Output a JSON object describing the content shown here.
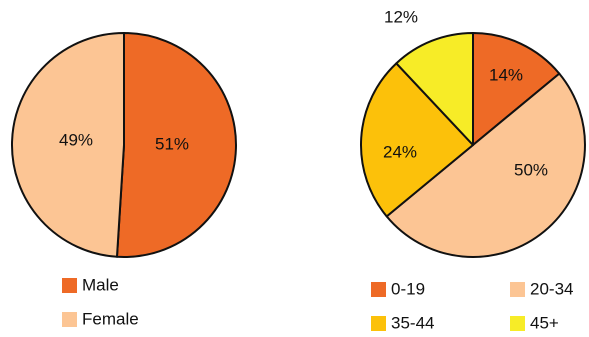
{
  "chart_data": [
    {
      "type": "pie",
      "title": "",
      "slices": [
        {
          "label": "Male",
          "value": 51,
          "display": "51%",
          "color": "#ee6a26"
        },
        {
          "label": "Female",
          "value": 49,
          "display": "49%",
          "color": "#fcc594"
        }
      ],
      "legend": [
        "Male",
        "Female"
      ],
      "legend_placement": "bottom"
    },
    {
      "type": "pie",
      "title": "",
      "slices": [
        {
          "label": "0-19",
          "value": 14,
          "display": "14%",
          "color": "#ee6a26"
        },
        {
          "label": "20-34",
          "value": 50,
          "display": "50%",
          "color": "#fcc594"
        },
        {
          "label": "35-44",
          "value": 24,
          "display": "24%",
          "color": "#fcc10a"
        },
        {
          "label": "45+",
          "value": 12,
          "display": "12%",
          "color": "#f7ec27"
        }
      ],
      "legend": [
        "0-19",
        "20-34",
        "35-44",
        "45+"
      ],
      "legend_placement": "bottom"
    }
  ]
}
